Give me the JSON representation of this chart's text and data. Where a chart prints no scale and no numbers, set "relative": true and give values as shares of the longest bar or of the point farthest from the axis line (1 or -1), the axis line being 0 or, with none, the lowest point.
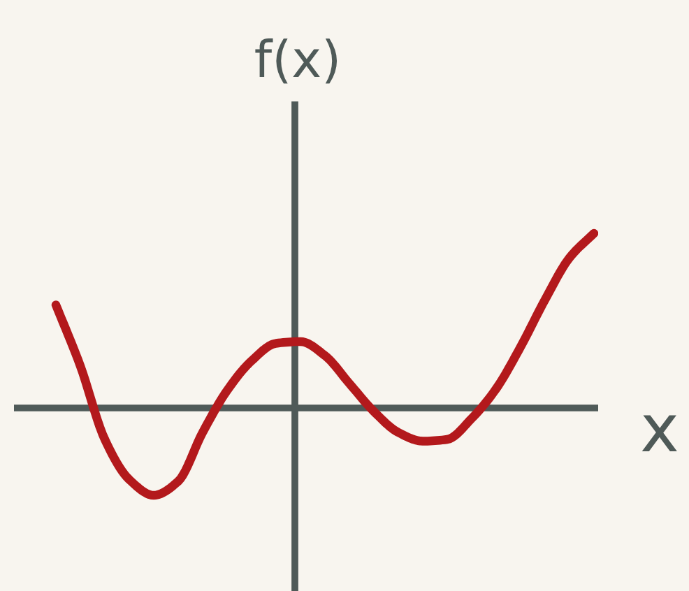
{
  "chart_data": {
    "type": "line",
    "relative": true,
    "xlabel": "x",
    "ylabel": "f(x)",
    "categories": [
      null,
      null,
      null,
      null,
      null,
      null,
      null,
      null,
      null,
      null,
      null,
      null,
      null,
      null,
      null,
      null,
      null,
      null,
      null,
      null,
      null,
      null,
      null
    ],
    "series": [
      {
        "color": "#b3191c",
        "values": [
          0.59,
          0.24,
          -0.18,
          -0.41,
          -0.5,
          -0.42,
          -0.14,
          0.1,
          0.27,
          0.37,
          0.38,
          0.3,
          0.14,
          -0.02,
          -0.14,
          -0.19,
          -0.18,
          -0.06,
          0.11,
          0.35,
          0.62,
          0.86,
          1.0
        ]
      }
    ],
    "marker": "none",
    "line_style": "solid"
  }
}
